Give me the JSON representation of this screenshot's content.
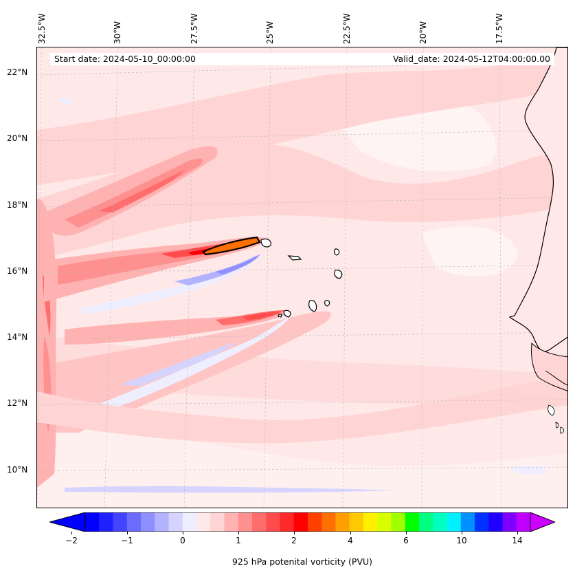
{
  "map": {
    "title_left": "Start date: 2024-05-10_00:00:00",
    "title_right": "Valid_date: 2024-05-12T04:00:00.00",
    "lon_labels": [
      "32.5°W",
      "30°W",
      "27.5°W",
      "25°W",
      "22.5°W",
      "20°W",
      "17.5°W"
    ],
    "lat_labels": [
      "22°N",
      "20°N",
      "18°N",
      "16°N",
      "14°N",
      "12°N",
      "10°N"
    ],
    "background_color": "#ffeaea"
  },
  "colorbar": {
    "label": "925 hPa potenital vorticity (PVU)",
    "tick_labels": [
      "−2",
      "−1",
      "0",
      "1",
      "2",
      "4",
      "6",
      "10",
      "14"
    ],
    "colors": [
      "#0000ff",
      "#2020ff",
      "#4444ff",
      "#6b6bff",
      "#8e8eff",
      "#b2b2ff",
      "#d4d4ff",
      "#eeeeff",
      "#ffe8e8",
      "#ffd4d4",
      "#ffb2b2",
      "#ff9090",
      "#ff6d6d",
      "#ff4b4b",
      "#ff2929",
      "#ff0000",
      "#ff4000",
      "#ff7000",
      "#ffa000",
      "#ffc800",
      "#fff000",
      "#d8ff00",
      "#a0ff00",
      "#00ff00",
      "#00ff80",
      "#00ffc0",
      "#00f0ff",
      "#0090ff",
      "#0030ff",
      "#2000ff",
      "#8000ff",
      "#c000ff"
    ],
    "extend_min_color": "#0000ff",
    "extend_max_color": "#cc00ff"
  }
}
